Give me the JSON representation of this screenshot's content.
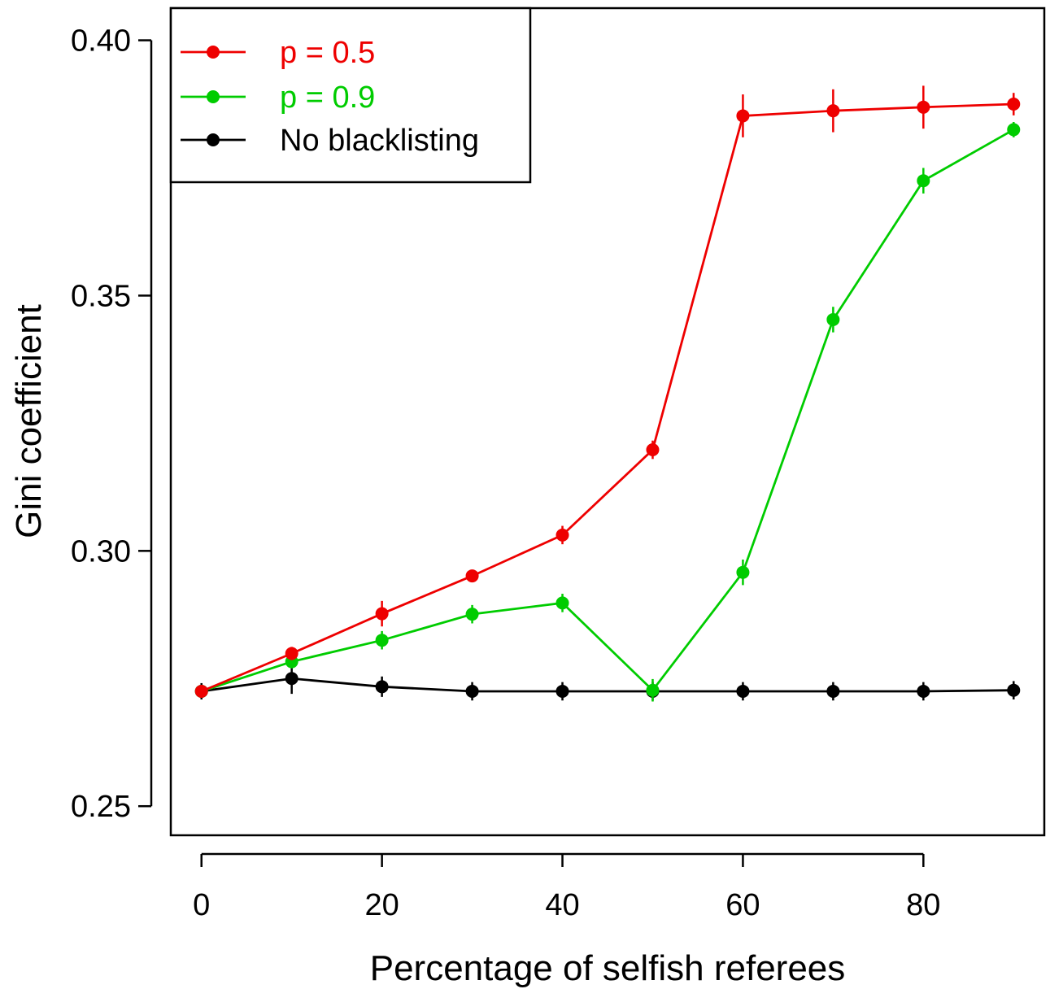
{
  "chart_data": {
    "type": "line",
    "xlabel": "Percentage of selfish referees",
    "ylabel": "Gini coefficient",
    "xlim": [
      -3.4,
      93.4
    ],
    "ylim": [
      0.2443,
      0.4063
    ],
    "xticks": [
      0,
      20,
      40,
      60,
      80
    ],
    "xtick_labels": [
      "0",
      "20",
      "40",
      "60",
      "80"
    ],
    "yticks": [
      0.25,
      0.3,
      0.35,
      0.4
    ],
    "ytick_labels": [
      "0.25",
      "0.30",
      "0.35",
      "0.40"
    ],
    "grid": false,
    "legend_position": "top-left",
    "x": [
      0,
      10,
      20,
      30,
      40,
      50,
      60,
      70,
      80,
      90
    ],
    "series": [
      {
        "name": "p = 0.5",
        "color": "#ee0000",
        "values": [
          0.2725,
          0.2799,
          0.2877,
          0.2951,
          0.3031,
          0.3198,
          0.3852,
          0.3862,
          0.3869,
          0.3875
        ],
        "error": [
          0.0012,
          0.0013,
          0.0025,
          0.0012,
          0.0018,
          0.0018,
          0.0042,
          0.0042,
          0.0042,
          0.0022
        ]
      },
      {
        "name": "p = 0.9",
        "color": "#00cc00",
        "values": [
          0.2725,
          0.2783,
          0.2825,
          0.2876,
          0.2898,
          0.2727,
          0.2958,
          0.3453,
          0.3725,
          0.3825
        ],
        "error": [
          0.0012,
          0.0013,
          0.0018,
          0.0018,
          0.0018,
          0.0022,
          0.0025,
          0.0025,
          0.0025,
          0.0015
        ]
      },
      {
        "name": "No blacklisting",
        "color": "#000000",
        "values": [
          0.2725,
          0.275,
          0.2734,
          0.2725,
          0.2725,
          0.2725,
          0.2725,
          0.2725,
          0.2725,
          0.2727
        ],
        "error": [
          0.0016,
          0.003,
          0.002,
          0.0018,
          0.0018,
          0.0018,
          0.0018,
          0.0018,
          0.0018,
          0.0018
        ]
      }
    ]
  }
}
